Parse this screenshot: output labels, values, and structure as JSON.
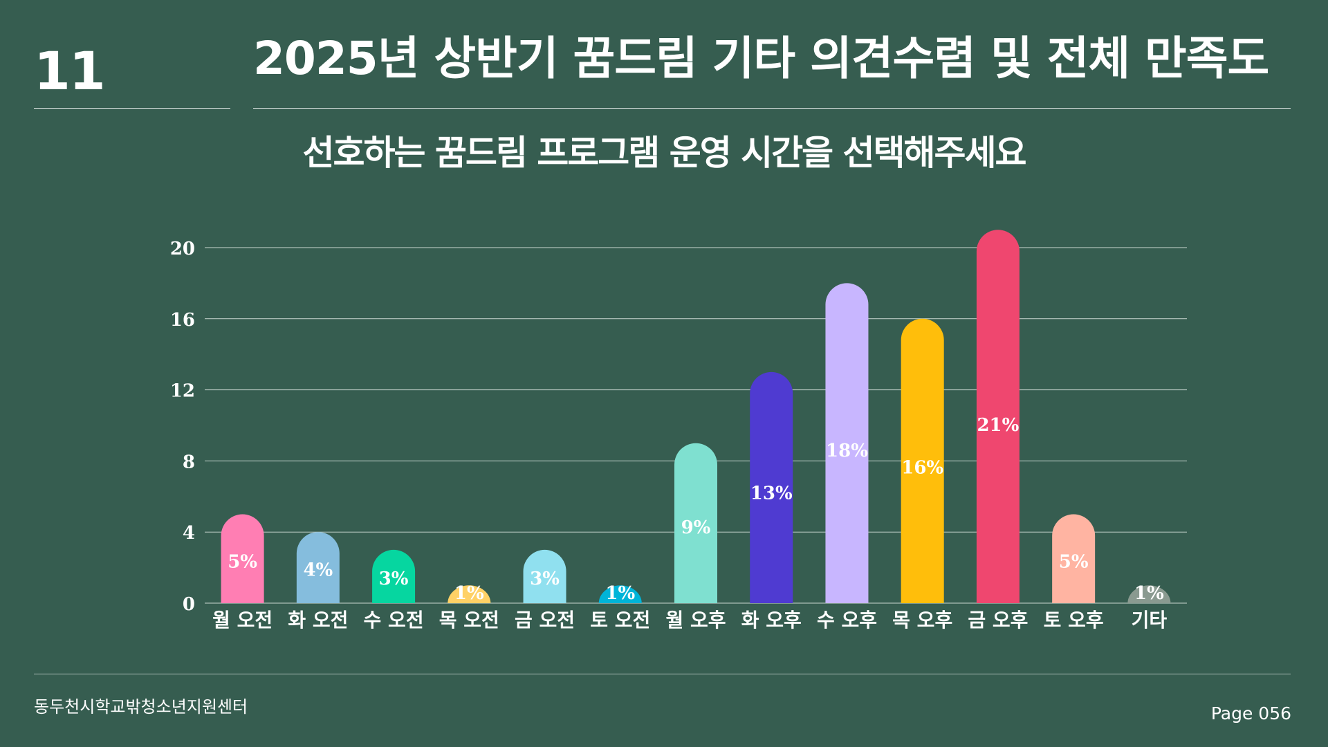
{
  "slide": {
    "number": "11",
    "title": "2025년 상반기 꿈드림 기타 의견수렴 및 전체 만족도"
  },
  "footer": {
    "organization": "동두천시학교밖청소년지원센터",
    "page": "Page 056"
  },
  "chart_data": {
    "type": "bar",
    "title": "선호하는 꿈드림 프로그램 운영 시간을 선택해주세요",
    "xlabel": "",
    "ylabel": "",
    "ylim": [
      0,
      22
    ],
    "yticks": [
      0,
      4,
      8,
      12,
      16,
      20
    ],
    "grid": true,
    "legend": "none",
    "categories": [
      "월 오전",
      "화 오전",
      "수 오전",
      "목 오전",
      "금 오전",
      "토 오전",
      "월 오후",
      "화 오후",
      "수 오후",
      "목 오후",
      "금 오후",
      "토 오후",
      "기타"
    ],
    "values": [
      5,
      4,
      3,
      1,
      3,
      1,
      9,
      13,
      18,
      16,
      21,
      5,
      1
    ],
    "data_labels": [
      "5%",
      "4%",
      "3%",
      "1%",
      "3%",
      "1%",
      "9%",
      "13%",
      "18%",
      "16%",
      "21%",
      "5%",
      "1%"
    ],
    "colors": [
      "#ff7eb3",
      "#85bddd",
      "#06d6a0",
      "#ffd166",
      "#90e0ef",
      "#00b4d8",
      "#7fe0d0",
      "#4f3bd1",
      "#c8b6ff",
      "#ffbe0b",
      "#ef476f",
      "#ffb4a2",
      "#8a9a90"
    ],
    "grid_color": "#c9d6d0",
    "text_color": "#ffffff"
  }
}
